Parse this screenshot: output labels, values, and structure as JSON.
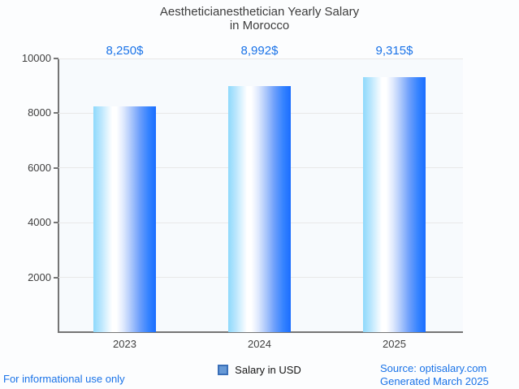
{
  "chart_data": {
    "type": "bar",
    "title_lines": [
      "Aestheticianesthetician Yearly Salary",
      "in Morocco"
    ],
    "categories": [
      "2023",
      "2024",
      "2025"
    ],
    "series": [
      {
        "name": "Salary in USD",
        "values": [
          8250,
          8992,
          9315
        ]
      }
    ],
    "value_labels": [
      "8,250$",
      "8,992$",
      "9,315$"
    ],
    "ylim": [
      0,
      10000
    ],
    "yticks": [
      2000,
      4000,
      6000,
      8000,
      10000
    ],
    "grid": "horizontal-only",
    "legend_position": "bottom-center",
    "colors": {
      "bar_gradient_left": "#8ed9fc",
      "bar_gradient_mid": "#ffffff",
      "bar_gradient_right": "#1a6dff",
      "label_blue": "#1a73e8",
      "axis_text": "#3f3f3f",
      "gridline": "#e8e8e8",
      "axis_line": "#757575",
      "legend_marker_fill": "#6699d6",
      "legend_marker_border": "#3a6fb8"
    }
  },
  "legend": {
    "label": "Salary in USD"
  },
  "footer": {
    "left_note": "For informational use only",
    "source_line1": "Source: optisalary.com",
    "source_line2": "Generated March 2025"
  }
}
